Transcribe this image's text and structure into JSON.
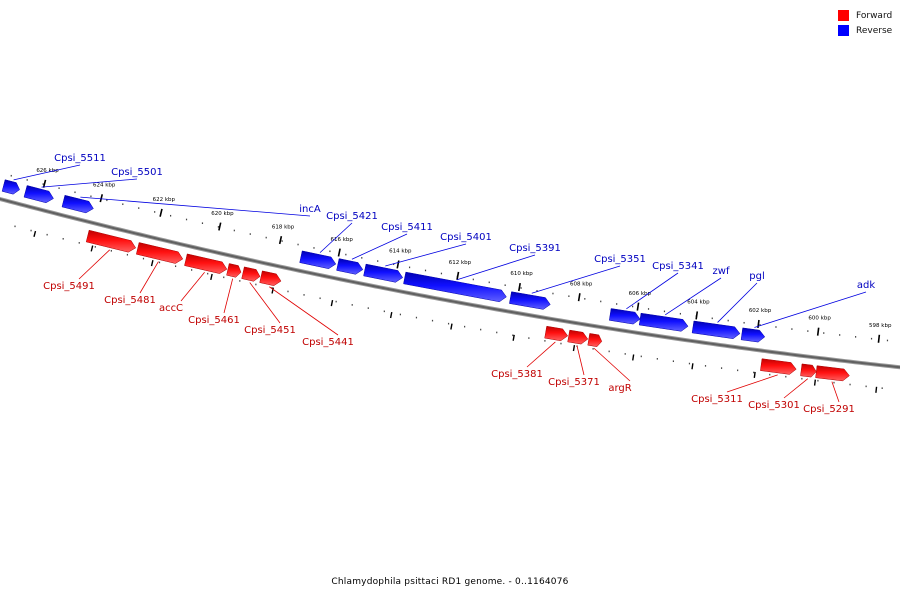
{
  "caption": "Chlamydophila psittaci RD1 genome. - 0..1164076",
  "legend": {
    "items": [
      {
        "label": "Forward",
        "color": "#ff0000"
      },
      {
        "label": "Reverse",
        "color": "#0000ff"
      }
    ]
  },
  "colors": {
    "forward": "#ff0000",
    "reverse": "#0000ff",
    "backbone": "#808080"
  },
  "ticks": [
    {
      "label": "626 kbp",
      "kbp": 626
    },
    {
      "label": "624 kbp",
      "kbp": 624
    },
    {
      "label": "622 kbp",
      "kbp": 622
    },
    {
      "label": "620 kbp",
      "kbp": 620
    },
    {
      "label": "618 kbp",
      "kbp": 618
    },
    {
      "label": "616 kbp",
      "kbp": 616
    },
    {
      "label": "614 kbp",
      "kbp": 614
    },
    {
      "label": "612 kbp",
      "kbp": 612
    },
    {
      "label": "610 kbp",
      "kbp": 610
    },
    {
      "label": "608 kbp",
      "kbp": 608
    },
    {
      "label": "606 kbp",
      "kbp": 606
    },
    {
      "label": "604 kbp",
      "kbp": 604
    },
    {
      "label": "602 kbp",
      "kbp": 602
    },
    {
      "label": "600 kbp",
      "kbp": 600
    },
    {
      "label": "598 kbp",
      "kbp": 598
    }
  ],
  "genes": [
    {
      "label": "Cpsi_5511",
      "strand": "reverse"
    },
    {
      "label": "Cpsi_5501",
      "strand": "reverse"
    },
    {
      "label": "incA",
      "strand": "reverse"
    },
    {
      "label": "Cpsi_5421",
      "strand": "reverse"
    },
    {
      "label": "Cpsi_5411",
      "strand": "reverse"
    },
    {
      "label": "Cpsi_5401",
      "strand": "reverse"
    },
    {
      "label": "Cpsi_5391",
      "strand": "reverse"
    },
    {
      "label": "Cpsi_5351",
      "strand": "reverse"
    },
    {
      "label": "Cpsi_5341",
      "strand": "reverse"
    },
    {
      "label": "zwf",
      "strand": "reverse"
    },
    {
      "label": "pgl",
      "strand": "reverse"
    },
    {
      "label": "adk",
      "strand": "reverse"
    },
    {
      "label": "Cpsi_5491",
      "strand": "forward"
    },
    {
      "label": "Cpsi_5481",
      "strand": "forward"
    },
    {
      "label": "accC",
      "strand": "forward"
    },
    {
      "label": "Cpsi_5461",
      "strand": "forward"
    },
    {
      "label": "Cpsi_5451",
      "strand": "forward"
    },
    {
      "label": "Cpsi_5441",
      "strand": "forward"
    },
    {
      "label": "Cpsi_5381",
      "strand": "forward"
    },
    {
      "label": "Cpsi_5371",
      "strand": "forward"
    },
    {
      "label": "argR",
      "strand": "forward"
    },
    {
      "label": "Cpsi_5311",
      "strand": "forward"
    },
    {
      "label": "Cpsi_5301",
      "strand": "forward"
    },
    {
      "label": "Cpsi_5291",
      "strand": "forward"
    }
  ]
}
